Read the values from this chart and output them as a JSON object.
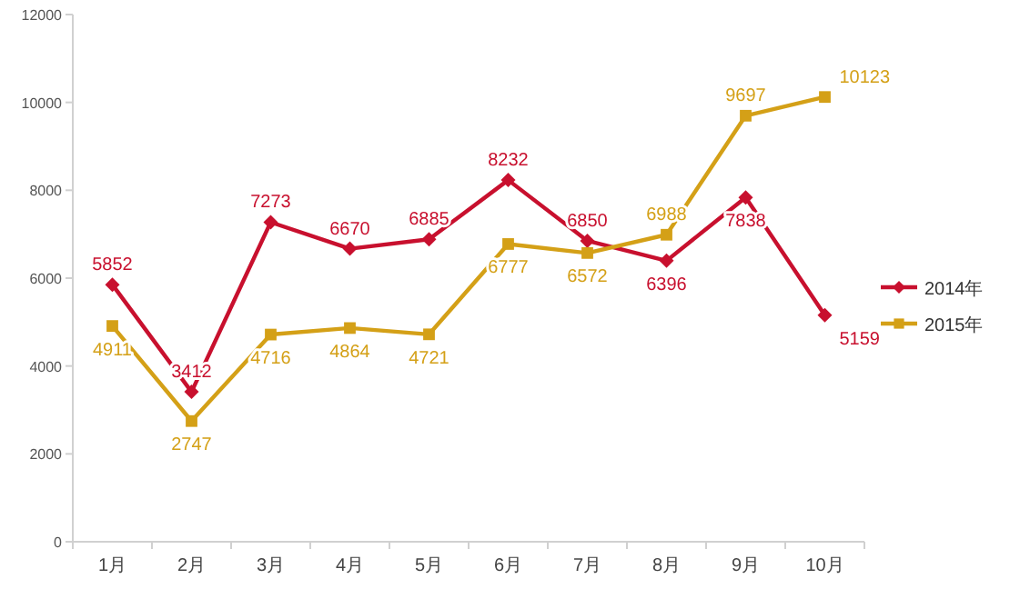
{
  "chart_data": {
    "type": "line",
    "categories": [
      "1月",
      "2月",
      "3月",
      "4月",
      "5月",
      "6月",
      "7月",
      "8月",
      "9月",
      "10月"
    ],
    "series": [
      {
        "name": "2014年",
        "color": "#c8102e",
        "marker": "diamond",
        "values": [
          5852,
          3412,
          7273,
          6670,
          6885,
          8232,
          6850,
          6396,
          7838,
          5159
        ]
      },
      {
        "name": "2015年",
        "color": "#d4a017",
        "marker": "square",
        "values": [
          4911,
          2747,
          4716,
          4864,
          4721,
          6777,
          6572,
          6988,
          9697,
          10123
        ]
      }
    ],
    "ylim": [
      0,
      12000
    ],
    "yticks": [
      0,
      2000,
      4000,
      6000,
      8000,
      10000,
      12000
    ],
    "grid": false,
    "legend": "right",
    "data_labels": true,
    "line_style": "solid"
  }
}
